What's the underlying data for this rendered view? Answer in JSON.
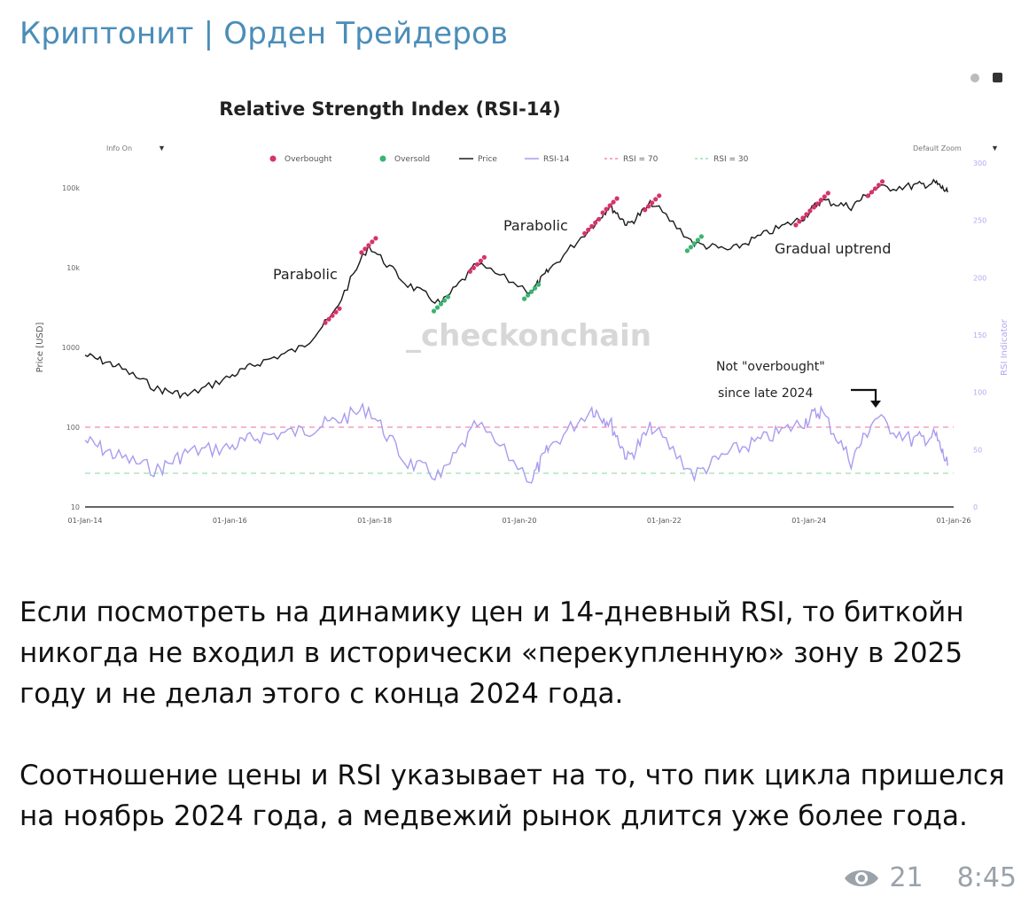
{
  "channel": {
    "title": "Криптонит | Орден Трейдеров"
  },
  "chart_data": {
    "type": "line",
    "title": "Relative Strength Index (RSI-14)",
    "controls": {
      "info": "Info On",
      "zoom": "Default Zoom"
    },
    "legend": [
      "Overbought",
      "Oversold",
      "Price",
      "RSI-14",
      "RSI = 70",
      "RSI = 30"
    ],
    "y_left": {
      "label": "Price [USD]",
      "scale": "log",
      "ticks": [
        "100k",
        "10k",
        "1000",
        "100",
        "10"
      ]
    },
    "y_right": {
      "label": "RSI Indicator",
      "ticks": [
        "300",
        "250",
        "200",
        "150",
        "100",
        "50",
        "0"
      ]
    },
    "x_ticks": [
      "01-Jan-14",
      "01-Jan-16",
      "01-Jan-18",
      "01-Jan-20",
      "01-Jan-22",
      "01-Jan-24",
      "01-Jan-26"
    ],
    "annotations": [
      "Parabolic",
      "Parabolic",
      "Gradual uptrend",
      "Not \"overbought\"",
      "since late 2024"
    ],
    "watermark": "_checkonchain",
    "colors": {
      "price": "#1a1a1a",
      "rsi": "#a89cf0",
      "overbought": "#d6336c",
      "oversold": "#3cb371",
      "rsi70": "#f08cb0",
      "rsi30": "#9ee0b0"
    },
    "price_series": {
      "x": [
        "2014-01",
        "2014-06",
        "2015-01",
        "2015-06",
        "2016-01",
        "2016-06",
        "2017-01",
        "2017-06",
        "2017-12",
        "2018-06",
        "2018-12",
        "2019-06",
        "2020-03",
        "2020-06",
        "2021-01",
        "2021-04",
        "2021-07",
        "2021-11",
        "2022-06",
        "2022-12",
        "2023-06",
        "2023-12",
        "2024-03",
        "2024-08",
        "2024-12",
        "2025-06",
        "2025-10",
        "2025-12"
      ],
      "y": [
        800,
        600,
        300,
        250,
        430,
        650,
        1000,
        2500,
        19000,
        6500,
        3500,
        11000,
        5000,
        9500,
        33000,
        60000,
        34000,
        65000,
        20000,
        16500,
        27000,
        42000,
        70000,
        58000,
        98000,
        105000,
        115000,
        88000
      ]
    },
    "rsi_series": {
      "x": [
        "2014-01",
        "2014-06",
        "2015-01",
        "2015-06",
        "2016-01",
        "2016-06",
        "2017-01",
        "2017-06",
        "2017-12",
        "2018-06",
        "2018-12",
        "2019-06",
        "2020-03",
        "2020-06",
        "2021-01",
        "2021-04",
        "2021-07",
        "2021-11",
        "2022-06",
        "2022-12",
        "2023-06",
        "2023-12",
        "2024-03",
        "2024-08",
        "2024-12",
        "2025-06",
        "2025-10",
        "2025-12"
      ],
      "y": [
        58,
        45,
        32,
        48,
        52,
        62,
        66,
        74,
        86,
        40,
        26,
        72,
        24,
        52,
        86,
        74,
        42,
        70,
        28,
        48,
        60,
        74,
        84,
        40,
        78,
        58,
        62,
        36
      ]
    }
  },
  "message": {
    "paragraphs": [
      "Если посмотреть на динамику цен и 14-дневный RSI, то биткойн никогда не входил в исторически «перекупленную» зону в 2025 году и не делал этого с конца 2024 года.",
      "Соотношение цены и RSI указывает на то, что пик цикла пришелся на ноябрь 2024 года, а медвежий рынок длится уже более года."
    ],
    "views": "21",
    "time": "8:45"
  }
}
